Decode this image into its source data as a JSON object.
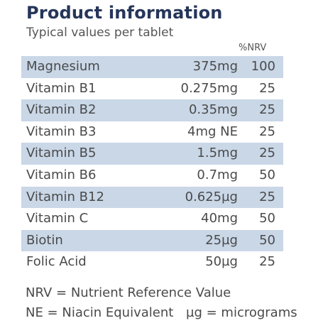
{
  "header": {
    "title": "Product information",
    "subtitle": "Typical values per tablet"
  },
  "table": {
    "nrv_header": "%NRV",
    "rows": [
      [
        "Magnesium",
        "375mg",
        "100"
      ],
      [
        "Vitamin B1",
        "0.275mg",
        "25"
      ],
      [
        "Vitamin B2",
        "0.35mg",
        "25"
      ],
      [
        "Vitamin B3",
        "4mg NE",
        "25"
      ],
      [
        "Vitamin B5",
        "1.5mg",
        "25"
      ],
      [
        "Vitamin B6",
        "0.7mg",
        "50"
      ],
      [
        "Vitamin B12",
        "0.625µg",
        "25"
      ],
      [
        "Vitamin C",
        "40mg",
        "50"
      ],
      [
        "Biotin",
        "25µg",
        "50"
      ],
      [
        "Folic Acid",
        "50µg",
        "25"
      ]
    ]
  },
  "notes": [
    "NRV = Nutrient Reference Value",
    "NE = Niacin Equivalent",
    "µg = micrograms"
  ]
}
